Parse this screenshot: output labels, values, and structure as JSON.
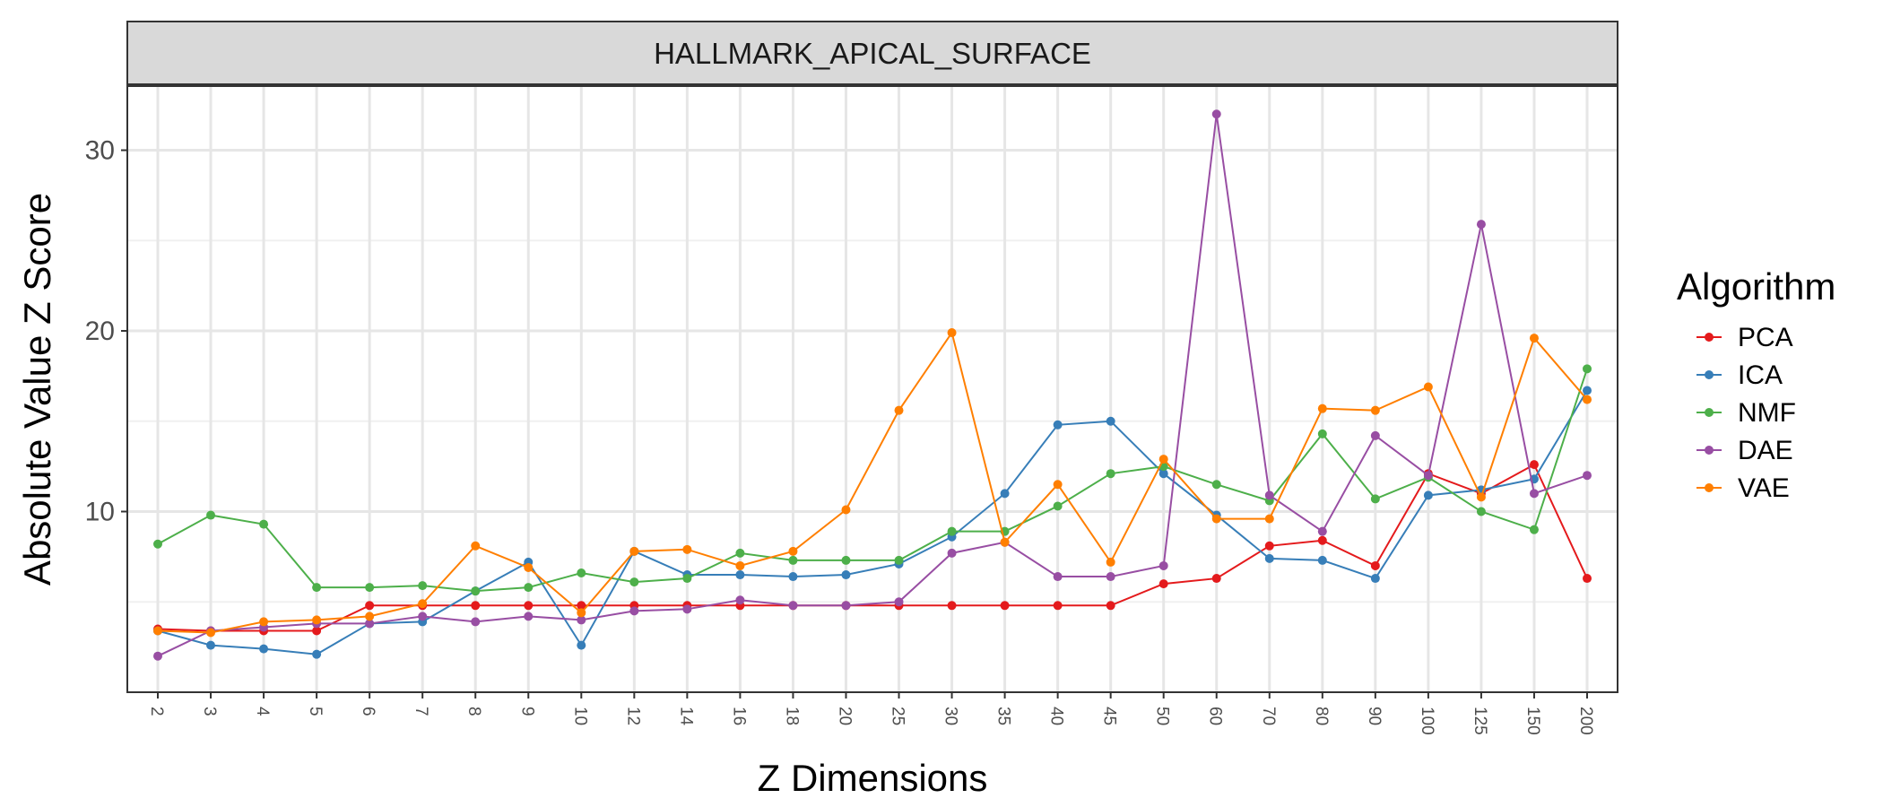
{
  "chart_data": {
    "type": "line",
    "title": "HALLMARK_APICAL_SURFACE",
    "xlabel": "Z Dimensions",
    "ylabel": "Absolute Value Z Score",
    "categories": [
      "2",
      "3",
      "4",
      "5",
      "6",
      "7",
      "8",
      "9",
      "10",
      "12",
      "14",
      "16",
      "18",
      "20",
      "25",
      "30",
      "35",
      "40",
      "45",
      "50",
      "60",
      "70",
      "80",
      "90",
      "100",
      "125",
      "150",
      "200"
    ],
    "ylim": [
      0,
      33.5
    ],
    "yticks": [
      10,
      20,
      30
    ],
    "grid": true,
    "legend": {
      "title": "Algorithm",
      "position": "right"
    },
    "series": [
      {
        "name": "PCA",
        "color": "#e41a1c",
        "values": [
          3.5,
          3.4,
          3.4,
          3.4,
          4.8,
          4.8,
          4.8,
          4.8,
          4.8,
          4.8,
          4.8,
          4.8,
          4.8,
          4.8,
          4.8,
          4.8,
          4.8,
          4.8,
          4.8,
          6.0,
          6.3,
          8.1,
          8.4,
          7.0,
          12.1,
          11.0,
          12.6,
          6.3
        ]
      },
      {
        "name": "ICA",
        "color": "#377eb8",
        "values": [
          3.4,
          2.6,
          2.4,
          2.1,
          3.8,
          3.9,
          5.6,
          7.2,
          2.6,
          7.8,
          6.5,
          6.5,
          6.4,
          6.5,
          7.1,
          8.6,
          11.0,
          14.8,
          15.0,
          12.1,
          9.8,
          7.4,
          7.3,
          6.3,
          10.9,
          11.2,
          11.8,
          16.7
        ]
      },
      {
        "name": "NMF",
        "color": "#4daf4a",
        "values": [
          8.2,
          9.8,
          9.3,
          5.8,
          5.8,
          5.9,
          5.6,
          5.8,
          6.6,
          6.1,
          6.3,
          7.7,
          7.3,
          7.3,
          7.3,
          8.9,
          8.9,
          10.3,
          12.1,
          12.5,
          11.5,
          10.6,
          14.3,
          10.7,
          11.9,
          10.0,
          9.0,
          17.9
        ]
      },
      {
        "name": "DAE",
        "color": "#984ea3",
        "values": [
          2.0,
          3.4,
          3.6,
          3.8,
          3.8,
          4.2,
          3.9,
          4.2,
          4.0,
          4.5,
          4.6,
          5.1,
          4.8,
          4.8,
          5.0,
          7.7,
          8.3,
          6.4,
          6.4,
          7.0,
          32.0,
          10.9,
          8.9,
          14.2,
          12.0,
          25.9,
          11.0,
          12.0
        ]
      },
      {
        "name": "VAE",
        "color": "#ff7f00",
        "values": [
          3.4,
          3.3,
          3.9,
          4.0,
          4.2,
          4.9,
          8.1,
          6.9,
          4.4,
          7.8,
          7.9,
          7.0,
          7.8,
          10.1,
          15.6,
          19.9,
          8.3,
          11.5,
          7.2,
          12.9,
          9.6,
          9.6,
          15.7,
          15.6,
          16.9,
          10.8,
          19.6,
          16.2
        ]
      }
    ]
  }
}
